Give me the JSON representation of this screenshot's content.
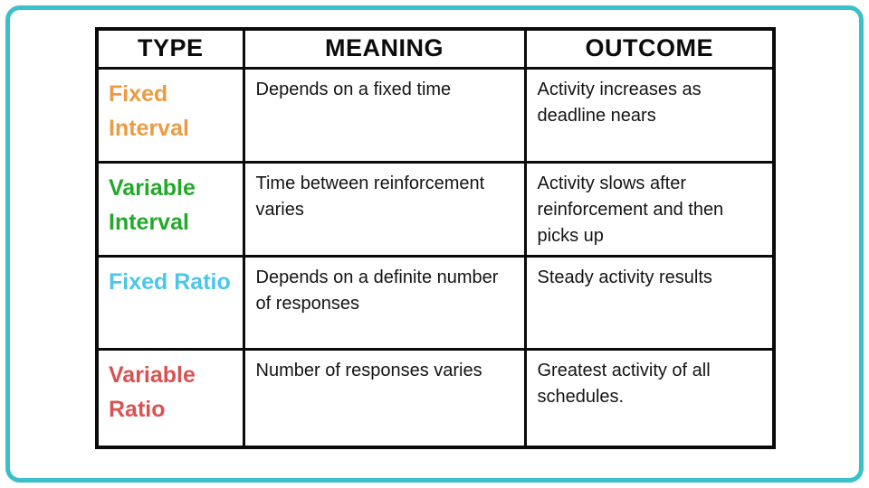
{
  "slide": {
    "frame_color": "#3cc0c8",
    "table": {
      "headers": [
        "TYPE",
        "MEANING",
        "OUTCOME"
      ],
      "rows": [
        {
          "type": "Fixed Interval",
          "type_color": "#eb9b43",
          "meaning": "Depends on a fixed time",
          "outcome": "Activity increases as deadline nears"
        },
        {
          "type": "Variable Interval",
          "type_color": "#22a92b",
          "meaning": "Time between reinforcement varies",
          "outcome": "Activity slows after reinforcement and then picks up"
        },
        {
          "type": "Fixed Ratio",
          "type_color": "#4cc6e9",
          "meaning": "Depends on a definite number of responses",
          "outcome": "Steady activity results"
        },
        {
          "type": "Variable Ratio",
          "type_color": "#d95252",
          "meaning": "Number of responses varies",
          "outcome": "Greatest activity of all schedules."
        }
      ]
    }
  }
}
